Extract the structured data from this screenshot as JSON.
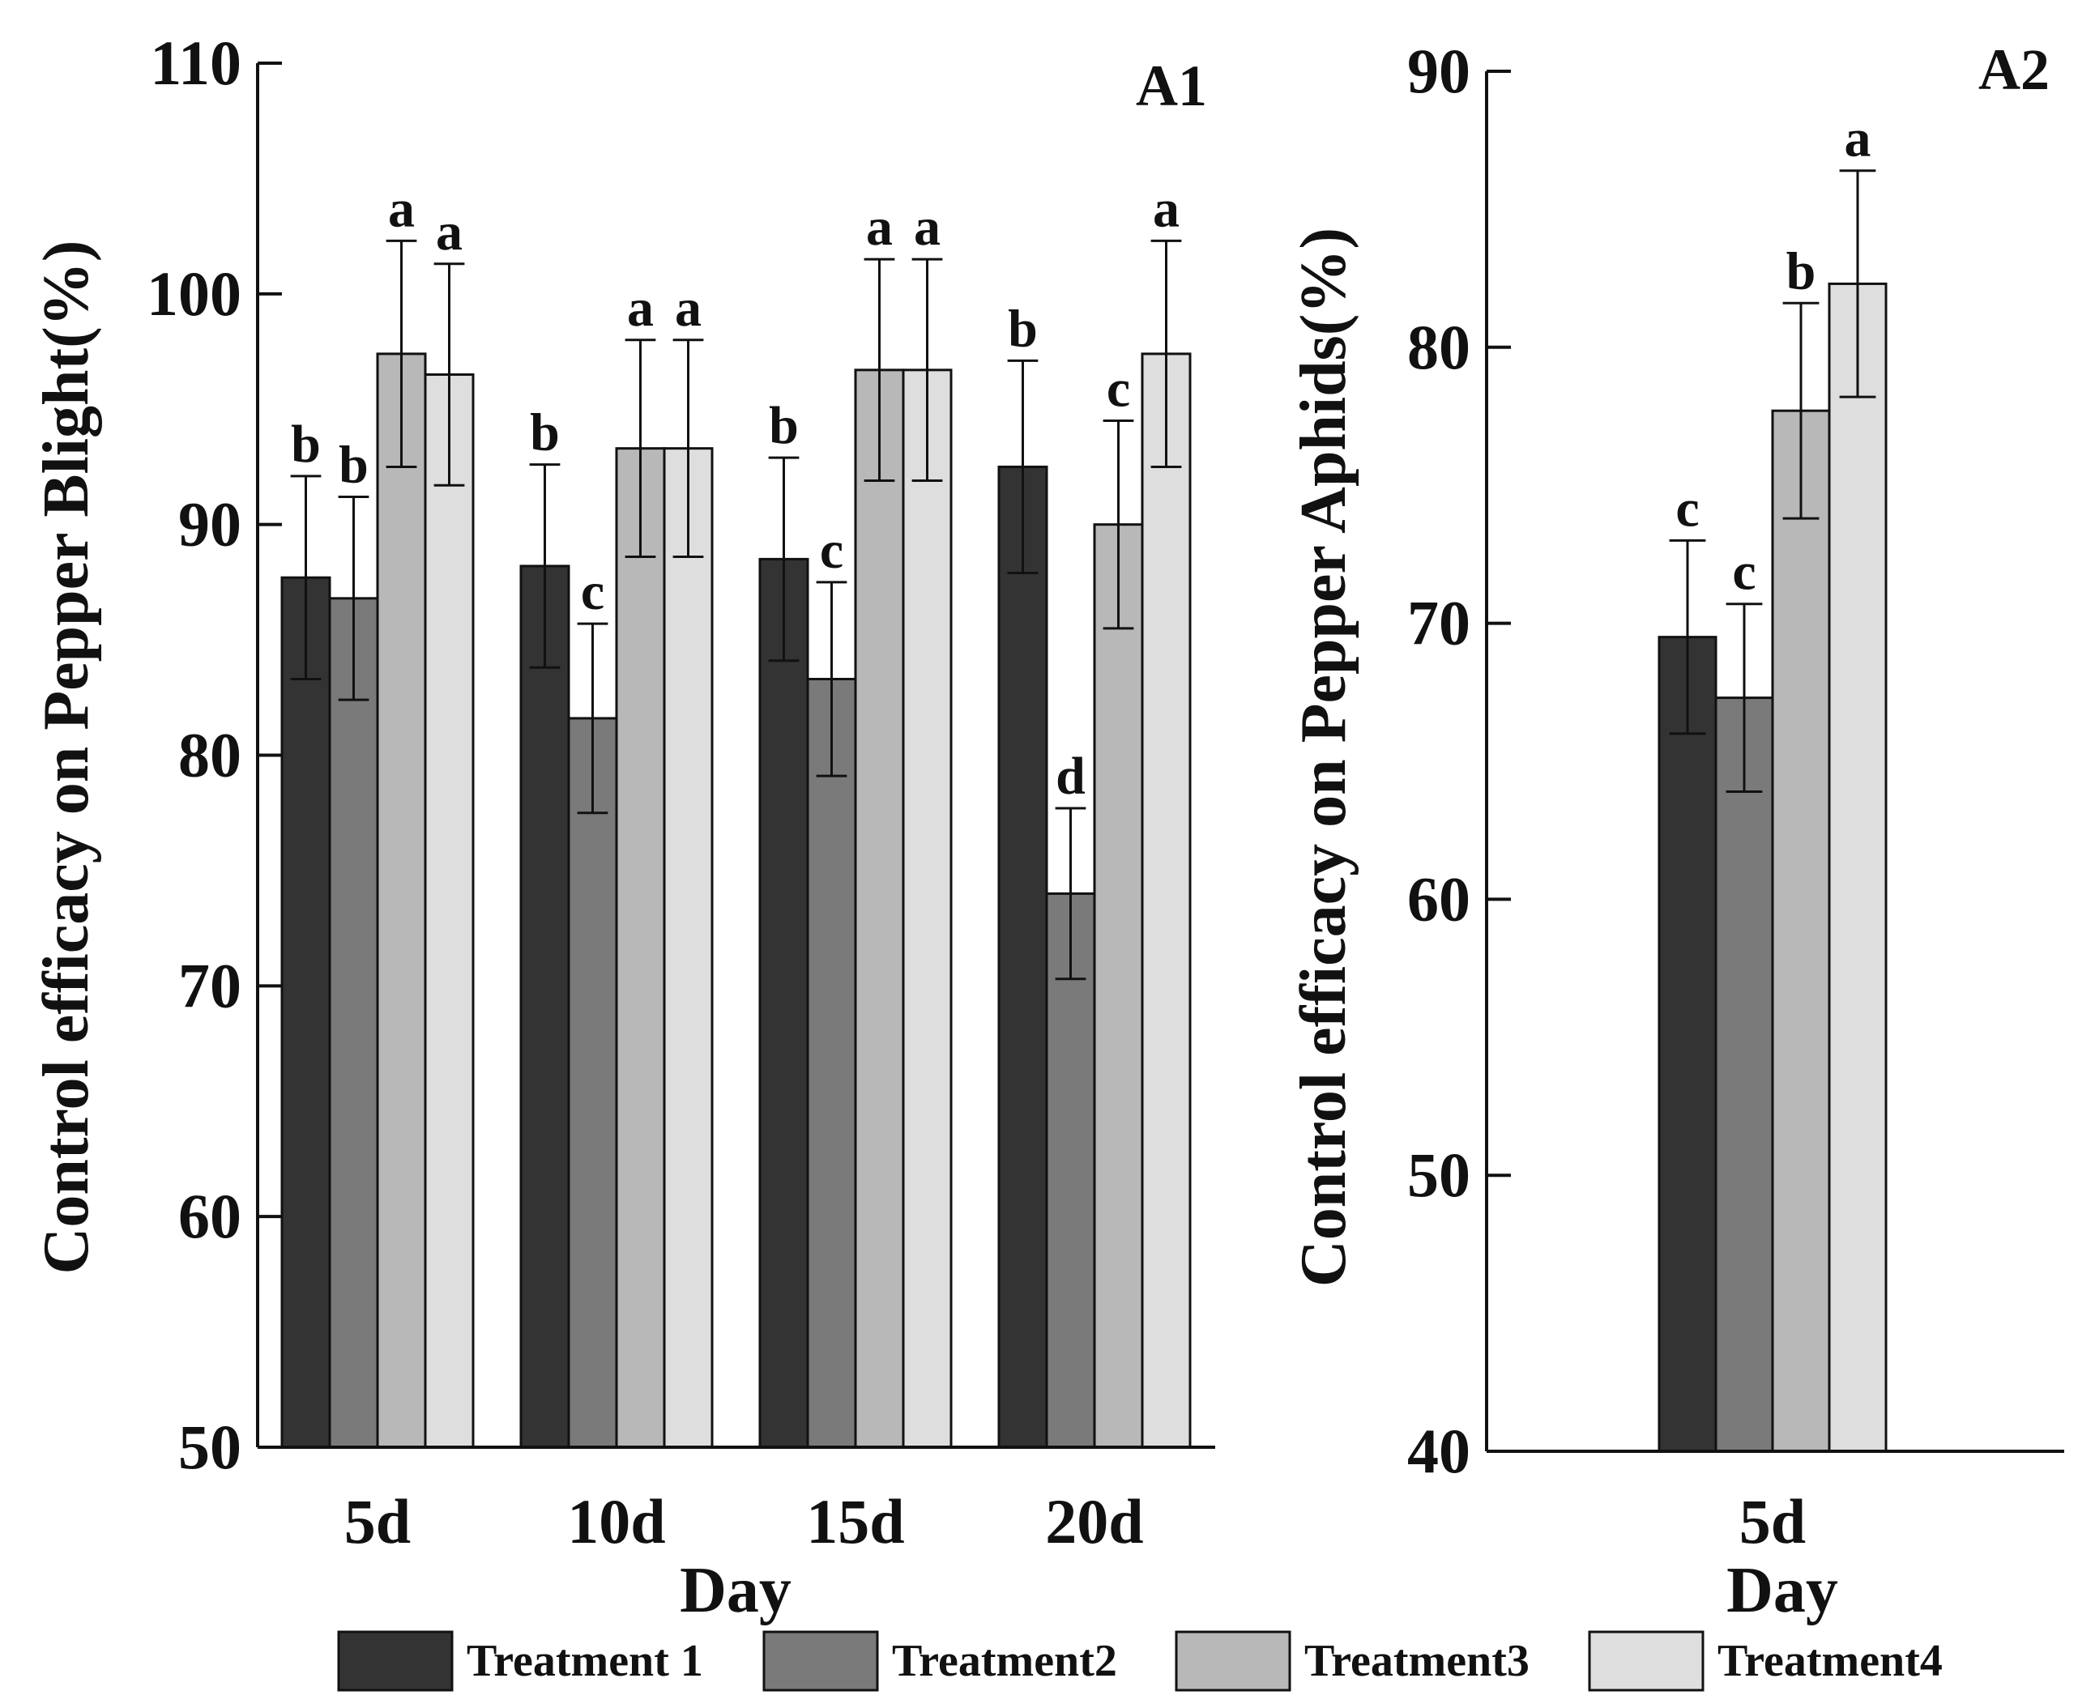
{
  "chart_data": [
    {
      "type": "bar",
      "panel_label": "A1",
      "xlabel": "Day",
      "ylabel": "Control efficacy on Pepper Blight(%)",
      "ylim": [
        50,
        110
      ],
      "yticks": [
        "50",
        "60",
        "70",
        "80",
        "90",
        "100",
        "110"
      ],
      "categories": [
        "5d",
        "10d",
        "15d",
        "20d"
      ],
      "series": [
        {
          "name": "Treatment 1",
          "values": [
            87.7,
            88.2,
            88.5,
            92.5
          ],
          "errors": [
            4.4,
            4.4,
            4.4,
            4.6
          ],
          "letters": [
            "b",
            "b",
            "b",
            "b"
          ]
        },
        {
          "name": "Treatment2",
          "values": [
            86.8,
            81.6,
            83.3,
            74.0
          ],
          "errors": [
            4.4,
            4.1,
            4.2,
            3.7
          ],
          "letters": [
            "b",
            "c",
            "c",
            "d"
          ]
        },
        {
          "name": "Treatment3",
          "values": [
            97.4,
            93.3,
            96.7,
            90.0
          ],
          "errors": [
            4.9,
            4.7,
            4.8,
            4.5
          ],
          "letters": [
            "a",
            "a",
            "a",
            "c"
          ]
        },
        {
          "name": "Treatment4",
          "values": [
            96.5,
            93.3,
            96.7,
            97.4
          ],
          "errors": [
            4.8,
            4.7,
            4.8,
            4.9
          ],
          "letters": [
            "a",
            "a",
            "a",
            "a"
          ]
        }
      ]
    },
    {
      "type": "bar",
      "panel_label": "A2",
      "xlabel": "Day",
      "ylabel": "Control efficacy on Pepper Aphids(%)",
      "ylim": [
        40,
        90
      ],
      "yticks": [
        "40",
        "50",
        "60",
        "70",
        "80",
        "90"
      ],
      "categories": [
        "5d"
      ],
      "series": [
        {
          "name": "Treatment 1",
          "values": [
            69.5
          ],
          "errors": [
            3.5
          ],
          "letters": [
            "c"
          ]
        },
        {
          "name": "Treatment2",
          "values": [
            67.3
          ],
          "errors": [
            3.4
          ],
          "letters": [
            "c"
          ]
        },
        {
          "name": "Treatment3",
          "values": [
            77.7
          ],
          "errors": [
            3.9
          ],
          "letters": [
            "b"
          ]
        },
        {
          "name": "Treatment4",
          "values": [
            82.3
          ],
          "errors": [
            4.1
          ],
          "letters": [
            "a"
          ]
        }
      ]
    }
  ],
  "legend": {
    "items": [
      {
        "name": "Treatment 1",
        "color": "#333333"
      },
      {
        "name": "Treatment2",
        "color": "#7a7a7a"
      },
      {
        "name": "Treatment3",
        "color": "#b8b8b8"
      },
      {
        "name": "Treatment4",
        "color": "#dedede"
      }
    ]
  }
}
